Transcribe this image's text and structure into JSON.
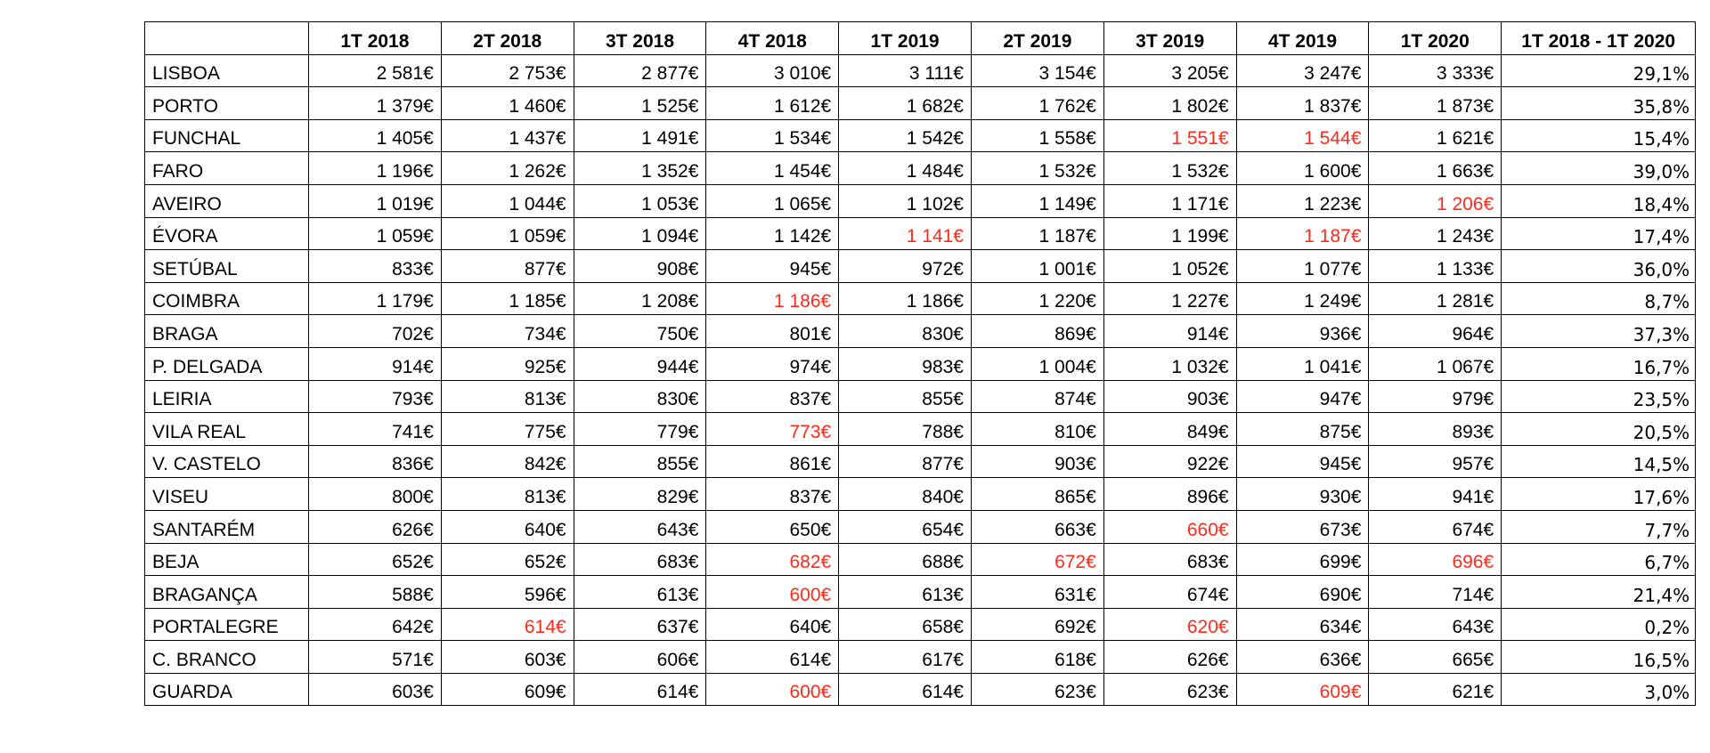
{
  "table": {
    "corner": "",
    "headers": [
      "1T 2018",
      "2T 2018",
      "3T 2018",
      "4T 2018",
      "1T 2019",
      "2T 2019",
      "3T 2019",
      "4T 2019",
      "1T 2020",
      "1T 2018 - 1T 2020"
    ],
    "decrease_color": "#ff2a1a",
    "rows": [
      {
        "city": "LISBOA",
        "values": [
          "2 581€",
          "2 753€",
          "2 877€",
          "3 010€",
          "3 111€",
          "3 154€",
          "3 205€",
          "3 247€",
          "3 333€"
        ],
        "red": [],
        "change": "29,1%"
      },
      {
        "city": "PORTO",
        "values": [
          "1 379€",
          "1 460€",
          "1 525€",
          "1 612€",
          "1 682€",
          "1 762€",
          "1 802€",
          "1 837€",
          "1 873€"
        ],
        "red": [],
        "change": "35,8%"
      },
      {
        "city": "FUNCHAL",
        "values": [
          "1 405€",
          "1 437€",
          "1 491€",
          "1 534€",
          "1 542€",
          "1 558€",
          "1 551€",
          "1 544€",
          "1 621€"
        ],
        "red": [
          6,
          7
        ],
        "change": "15,4%"
      },
      {
        "city": "FARO",
        "values": [
          "1 196€",
          "1 262€",
          "1 352€",
          "1 454€",
          "1 484€",
          "1 532€",
          "1 532€",
          "1 600€",
          "1 663€"
        ],
        "red": [],
        "change": "39,0%"
      },
      {
        "city": "AVEIRO",
        "values": [
          "1 019€",
          "1 044€",
          "1 053€",
          "1 065€",
          "1 102€",
          "1 149€",
          "1 171€",
          "1 223€",
          "1 206€"
        ],
        "red": [
          8
        ],
        "change": "18,4%"
      },
      {
        "city": "ÉVORA",
        "values": [
          "1 059€",
          "1 059€",
          "1 094€",
          "1 142€",
          "1 141€",
          "1 187€",
          "1 199€",
          "1 187€",
          "1 243€"
        ],
        "red": [
          4,
          7
        ],
        "change": "17,4%"
      },
      {
        "city": "SETÚBAL",
        "values": [
          "833€",
          "877€",
          "908€",
          "945€",
          "972€",
          "1 001€",
          "1 052€",
          "1 077€",
          "1 133€"
        ],
        "red": [],
        "change": "36,0%"
      },
      {
        "city": "COIMBRA",
        "values": [
          "1 179€",
          "1 185€",
          "1 208€",
          "1 186€",
          "1 186€",
          "1 220€",
          "1 227€",
          "1 249€",
          "1 281€"
        ],
        "red": [
          3
        ],
        "change": "8,7%"
      },
      {
        "city": "BRAGA",
        "values": [
          "702€",
          "734€",
          "750€",
          "801€",
          "830€",
          "869€",
          "914€",
          "936€",
          "964€"
        ],
        "red": [],
        "change": "37,3%"
      },
      {
        "city": "P. DELGADA",
        "values": [
          "914€",
          "925€",
          "944€",
          "974€",
          "983€",
          "1 004€",
          "1 032€",
          "1 041€",
          "1 067€"
        ],
        "red": [],
        "change": "16,7%"
      },
      {
        "city": "LEIRIA",
        "values": [
          "793€",
          "813€",
          "830€",
          "837€",
          "855€",
          "874€",
          "903€",
          "947€",
          "979€"
        ],
        "red": [],
        "change": "23,5%"
      },
      {
        "city": "VILA REAL",
        "values": [
          "741€",
          "775€",
          "779€",
          "773€",
          "788€",
          "810€",
          "849€",
          "875€",
          "893€"
        ],
        "red": [
          3
        ],
        "change": "20,5%"
      },
      {
        "city": "V. CASTELO",
        "values": [
          "836€",
          "842€",
          "855€",
          "861€",
          "877€",
          "903€",
          "922€",
          "945€",
          "957€"
        ],
        "red": [],
        "change": "14,5%"
      },
      {
        "city": "VISEU",
        "values": [
          "800€",
          "813€",
          "829€",
          "837€",
          "840€",
          "865€",
          "896€",
          "930€",
          "941€"
        ],
        "red": [],
        "change": "17,6%"
      },
      {
        "city": "SANTARÉM",
        "values": [
          "626€",
          "640€",
          "643€",
          "650€",
          "654€",
          "663€",
          "660€",
          "673€",
          "674€"
        ],
        "red": [
          6
        ],
        "change": "7,7%"
      },
      {
        "city": "BEJA",
        "values": [
          "652€",
          "652€",
          "683€",
          "682€",
          "688€",
          "672€",
          "683€",
          "699€",
          "696€"
        ],
        "red": [
          3,
          5,
          8
        ],
        "change": "6,7%"
      },
      {
        "city": "BRAGANÇA",
        "values": [
          "588€",
          "596€",
          "613€",
          "600€",
          "613€",
          "631€",
          "674€",
          "690€",
          "714€"
        ],
        "red": [
          3
        ],
        "change": "21,4%"
      },
      {
        "city": "PORTALEGRE",
        "values": [
          "642€",
          "614€",
          "637€",
          "640€",
          "658€",
          "692€",
          "620€",
          "634€",
          "643€"
        ],
        "red": [
          1,
          6
        ],
        "change": "0,2%"
      },
      {
        "city": "C. BRANCO",
        "values": [
          "571€",
          "603€",
          "606€",
          "614€",
          "617€",
          "618€",
          "626€",
          "636€",
          "665€"
        ],
        "red": [],
        "change": "16,5%"
      },
      {
        "city": "GUARDA",
        "values": [
          "603€",
          "609€",
          "614€",
          "600€",
          "614€",
          "623€",
          "623€",
          "609€",
          "621€"
        ],
        "red": [
          3,
          7
        ],
        "change": "3,0%"
      }
    ]
  }
}
